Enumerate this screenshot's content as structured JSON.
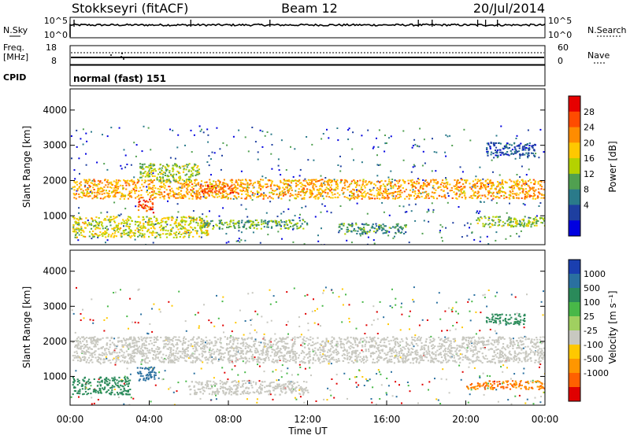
{
  "header": {
    "station": "Stokkseyri (fitACF)",
    "beam": "Beam 12",
    "date": "20/Jul/2014"
  },
  "top_panels": {
    "nsky_label": "N.Sky",
    "nsky_ticks": [
      "10^5",
      "10^0"
    ],
    "nsearch_label": "N.Search",
    "nsearch_ticks": [
      "10^5",
      "10^0"
    ],
    "freq_label": "Freq.",
    "freq_unit": "[MHz]",
    "freq_ticks": [
      "18",
      "8"
    ],
    "nave_label": "Nave",
    "nave_ticks": [
      "60",
      "0"
    ],
    "cpid_label": "CPID",
    "cpid_value": "normal (fast) 151"
  },
  "time_axis": {
    "ticks": [
      "00:00",
      "04:00",
      "08:00",
      "12:00",
      "16:00",
      "20:00",
      "00:00"
    ],
    "label": "Time UT"
  },
  "power_colorbar": {
    "label": "Power [dB]",
    "ticks": [
      "28",
      "24",
      "20",
      "16",
      "12",
      "8",
      "4"
    ],
    "colors": [
      "#e60000",
      "#ff4b00",
      "#ff8c00",
      "#ffc800",
      "#b4d200",
      "#50a050",
      "#2a7a8a",
      "#1e3fa0",
      "#0000e0"
    ]
  },
  "velocity_colorbar": {
    "label": "Velocity [m s⁻¹]",
    "ticks": [
      "1000",
      "500",
      "100",
      "25",
      "-25",
      "-100",
      "-500",
      "-1000"
    ],
    "colors": [
      "#1a3fb0",
      "#2a70a0",
      "#2a8a5a",
      "#48b848",
      "#a0d060",
      "#c8c8c0",
      "#ffc800",
      "#ff9600",
      "#ff6000",
      "#e00000"
    ]
  },
  "chart_data": [
    {
      "type": "heatmap",
      "title": "Power",
      "ylabel": "Slant Range [km]",
      "xlabel": "Time UT",
      "x_range_hours": [
        0,
        24
      ],
      "ylim": [
        180,
        4600
      ],
      "yticks": [
        "1000",
        "2000",
        "3000",
        "4000"
      ],
      "colorbar_label": "Power [dB]",
      "regions": [
        {
          "t0": 0.1,
          "t1": 24,
          "r0": 1500,
          "r1": 2050,
          "value": 22
        },
        {
          "t0": 6.5,
          "t1": 8.5,
          "r0": 1650,
          "r1": 1900,
          "value": 26
        },
        {
          "t0": 3.4,
          "t1": 4.2,
          "r0": 1100,
          "r1": 1500,
          "value": 28
        },
        {
          "t0": 0.1,
          "t1": 7.0,
          "r0": 400,
          "r1": 1000,
          "value": 18
        },
        {
          "t0": 6.5,
          "t1": 12.0,
          "r0": 650,
          "r1": 900,
          "value": 14
        },
        {
          "t0": 13.5,
          "t1": 17.0,
          "r0": 500,
          "r1": 800,
          "value": 12
        },
        {
          "t0": 20.5,
          "t1": 24,
          "r0": 700,
          "r1": 1000,
          "value": 16
        },
        {
          "t0": 3.5,
          "t1": 6.5,
          "r0": 2000,
          "r1": 2500,
          "value": 16
        },
        {
          "t0": 21.0,
          "t1": 23.5,
          "r0": 2700,
          "r1": 3100,
          "value": 8
        }
      ]
    },
    {
      "type": "heatmap",
      "title": "Velocity",
      "ylabel": "Slant Range [km]",
      "xlabel": "Time UT",
      "x_range_hours": [
        0,
        24
      ],
      "ylim": [
        180,
        4600
      ],
      "yticks": [
        "1000",
        "2000",
        "3000",
        "4000"
      ],
      "colorbar_label": "Velocity [m s⁻¹]",
      "regions": [
        {
          "t0": 0.1,
          "t1": 24,
          "r0": 1400,
          "r1": 2150,
          "value": 0
        },
        {
          "t0": 0.1,
          "t1": 3.0,
          "r0": 500,
          "r1": 1000,
          "value": 150
        },
        {
          "t0": 3.3,
          "t1": 4.3,
          "r0": 900,
          "r1": 1300,
          "value": 400
        },
        {
          "t0": 6.0,
          "t1": 12.0,
          "r0": 500,
          "r1": 900,
          "value": 0
        },
        {
          "t0": 20.0,
          "t1": 24,
          "r0": 650,
          "r1": 900,
          "value": -300
        },
        {
          "t0": 21.0,
          "t1": 23.0,
          "r0": 2500,
          "r1": 2800,
          "value": 120
        }
      ]
    }
  ]
}
